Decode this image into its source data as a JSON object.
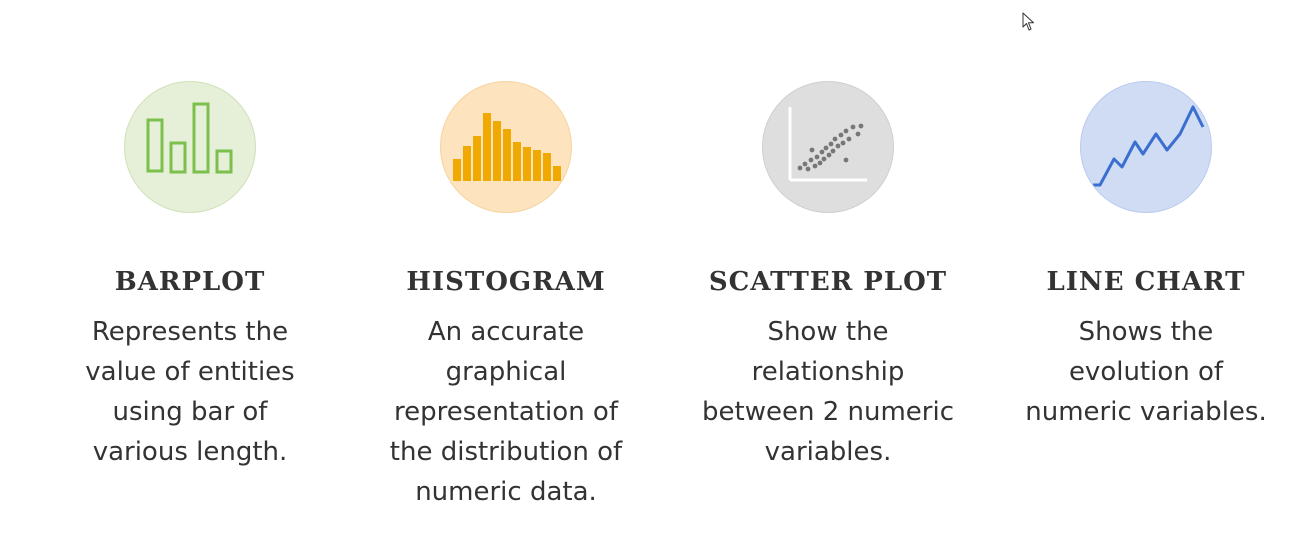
{
  "cards": [
    {
      "title": "BARPLOT",
      "icon": "barplot-icon",
      "bg": "#e6f0d8",
      "border": "#cfe0b8",
      "accent": "#7cbf4c",
      "lines": [
        "Represents the",
        "value of entities",
        "using bar of",
        "various length."
      ]
    },
    {
      "title": "HISTOGRAM",
      "icon": "histogram-icon",
      "bg": "#fde4bf",
      "border": "#f6d39f",
      "accent": "#efa900",
      "lines": [
        "An accurate",
        "graphical",
        "representation of",
        "the distribution of",
        "numeric data."
      ]
    },
    {
      "title": "SCATTER PLOT",
      "icon": "scatter-plot-icon",
      "bg": "#dedede",
      "border": "#cfcfcf",
      "accent": "#777777",
      "lines": [
        "Show the",
        "relationship",
        "between 2 numeric",
        "variables."
      ]
    },
    {
      "title": "LINE CHART",
      "icon": "line-chart-icon",
      "bg": "#cfdcf4",
      "border": "#b9cbee",
      "accent": "#3a6fd0",
      "lines": [
        "Shows the",
        "evolution of",
        "numeric variables."
      ]
    }
  ]
}
